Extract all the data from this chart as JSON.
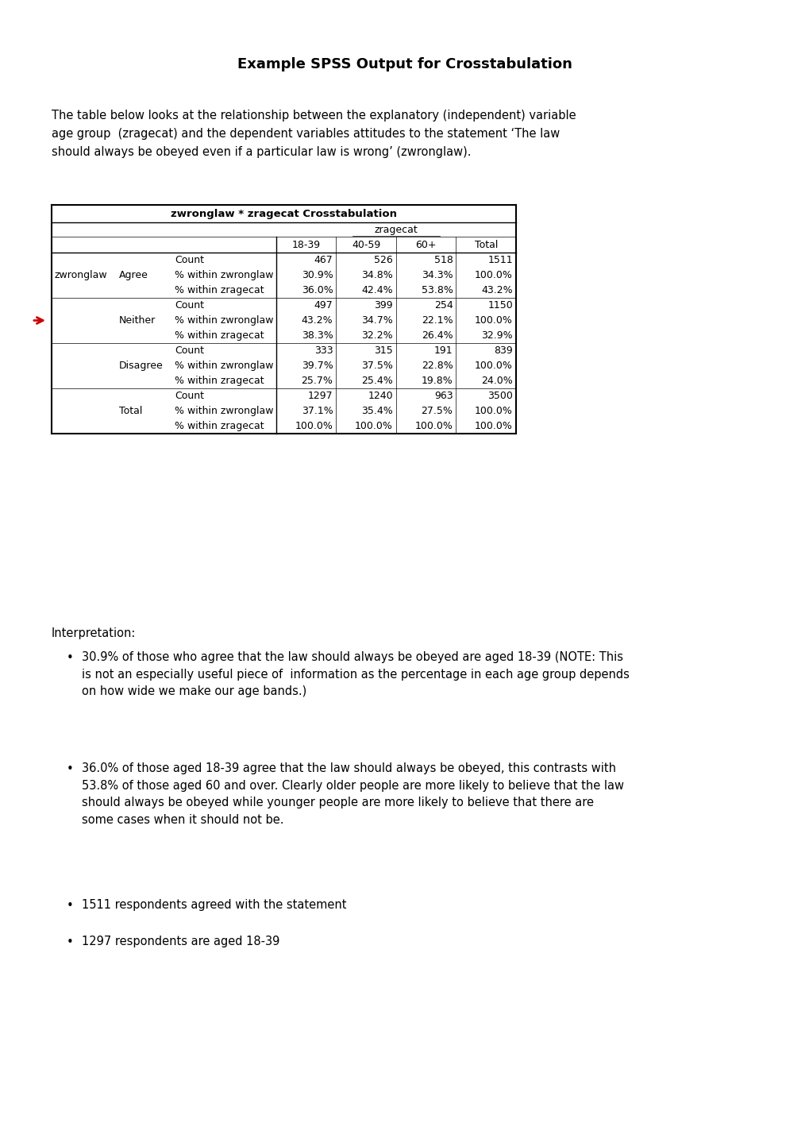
{
  "title": "Example SPSS Output for Crosstabulation",
  "intro_text": "The table below looks at the relationship between the explanatory (independent) variable\nage group  (zragecat) and the dependent variables attitudes to the statement ‘The law\nshould always be obeyed even if a particular law is wrong’ (zwronglaw).",
  "table_title": "zwronglaw * zragecat Crosstabulation",
  "col_header1": "zragecat",
  "col_labels": [
    "18-39",
    "40-59",
    "60+",
    "Total"
  ],
  "row_header": "zwronglaw",
  "rows": [
    {
      "group": "Agree",
      "subrows": [
        [
          "Count",
          "467",
          "526",
          "518",
          "1511"
        ],
        [
          "% within zwronglaw",
          "30.9%",
          "34.8%",
          "34.3%",
          "100.0%"
        ],
        [
          "% within zragecat",
          "36.0%",
          "42.4%",
          "53.8%",
          "43.2%"
        ]
      ]
    },
    {
      "group": "Neither",
      "subrows": [
        [
          "Count",
          "497",
          "399",
          "254",
          "1150"
        ],
        [
          "% within zwronglaw",
          "43.2%",
          "34.7%",
          "22.1%",
          "100.0%"
        ],
        [
          "% within zragecat",
          "38.3%",
          "32.2%",
          "26.4%",
          "32.9%"
        ]
      ]
    },
    {
      "group": "Disagree",
      "subrows": [
        [
          "Count",
          "333",
          "315",
          "191",
          "839"
        ],
        [
          "% within zwronglaw",
          "39.7%",
          "37.5%",
          "22.8%",
          "100.0%"
        ],
        [
          "% within zragecat",
          "25.7%",
          "25.4%",
          "19.8%",
          "24.0%"
        ]
      ]
    },
    {
      "group": "Total",
      "subrows": [
        [
          "Count",
          "1297",
          "1240",
          "963",
          "3500"
        ],
        [
          "% within zwronglaw",
          "37.1%",
          "35.4%",
          "27.5%",
          "100.0%"
        ],
        [
          "% within zragecat",
          "100.0%",
          "100.0%",
          "100.0%",
          "100.0%"
        ]
      ]
    }
  ],
  "interpretation_header": "Interpretation:",
  "bullet_points": [
    "30.9% of those who agree that the law should always be obeyed are aged 18-39 (NOTE: This\nis not an especially useful piece of  information as the percentage in each age group depends\non how wide we make our age bands.)",
    "36.0% of those aged 18-39 agree that the law should always be obeyed, this contrasts with\n53.8% of those aged 60 and over. Clearly older people are more likely to believe that the law\nshould always be obeyed while younger people are more likely to believe that there are\nsome cases when it should not be.",
    "1511 respondents agreed with the statement",
    "1297 respondents are aged 18-39"
  ],
  "arrow_color": "#cc0000",
  "bg_color": "#ffffff",
  "text_color": "#000000",
  "table_border_color": "#000000",
  "font_size_title": 13,
  "font_size_body": 10.5,
  "font_size_table": 9.0
}
